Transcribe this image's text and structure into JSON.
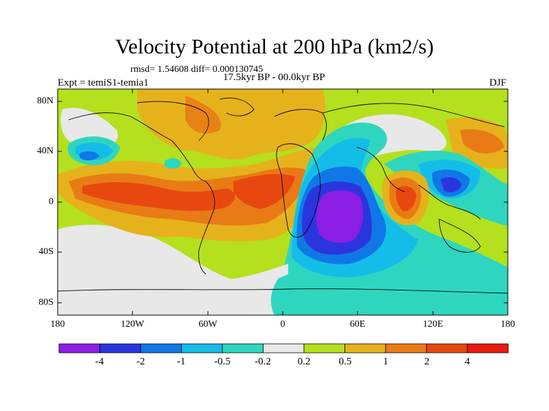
{
  "title": "Velocity Potential at 200 hPa (km2/s)",
  "stats": "rmsd= 1.54608 diff= 0.000130745",
  "period": "17.5kyr BP - 00.0kyr BP",
  "experiment": "Expt = temiS1-temia1",
  "season": "DJF",
  "axes": {
    "y_ticks": [
      "80N",
      "40N",
      "0",
      "40S",
      "80S"
    ],
    "x_ticks": [
      "180",
      "120W",
      "60W",
      "0",
      "60E",
      "120E",
      "180"
    ]
  },
  "colorbar": {
    "labels": [
      "-4",
      "-2",
      "-1",
      "-0.5",
      "-0.2",
      "0.2",
      "0.5",
      "1",
      "2",
      "4"
    ],
    "colors": [
      "#8c1ee6",
      "#2b35de",
      "#0f78e6",
      "#14bde8",
      "#2ed6c0",
      "#e8e8e8",
      "#b4e01e",
      "#e6b21c",
      "#e87b16",
      "#e8480f",
      "#e81a0e"
    ]
  }
}
